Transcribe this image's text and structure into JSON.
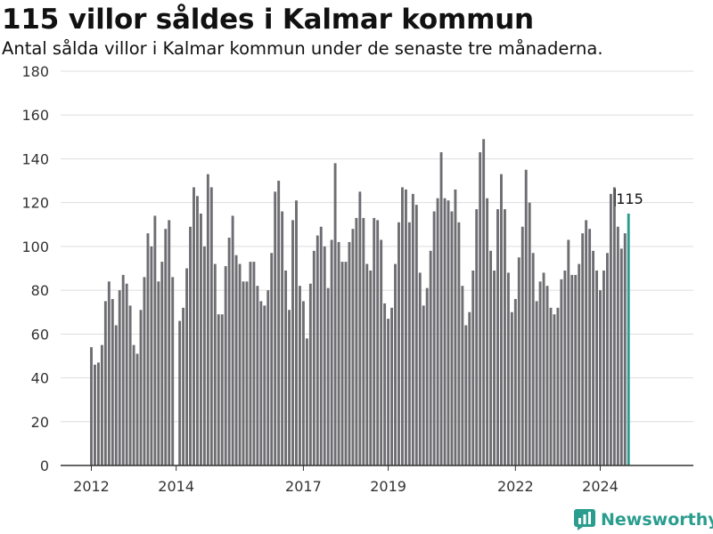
{
  "title": "115 villor såldes i Kalmar kommun",
  "subtitle": "Antal sålda villor i Kalmar kommun under de senaste tre månaderna.",
  "brand": {
    "name": "Newsworthy",
    "icon": "newsworthy-logo-icon"
  },
  "colors": {
    "bar": "#6e6d72",
    "highlight": "#2a9d8f",
    "grid": "#dddddd",
    "axis": "#333333",
    "text": "#333333"
  },
  "chart_data": {
    "type": "bar",
    "title": "115 villor såldes i Kalmar kommun",
    "subtitle": "Antal sålda villor i Kalmar kommun under de senaste tre månaderna.",
    "xlabel": "",
    "ylabel": "",
    "ylim": [
      0,
      180
    ],
    "y_ticks": [
      0,
      20,
      40,
      60,
      80,
      100,
      120,
      140,
      160,
      180
    ],
    "x_ticks": [
      "2012",
      "2014",
      "2017",
      "2019",
      "2022",
      "2024"
    ],
    "x_tick_values": [
      2012,
      2014,
      2017,
      2019,
      2022,
      2024
    ],
    "grid": true,
    "start_year": 2012,
    "periods_per_year": 12,
    "values": [
      54,
      46,
      47,
      55,
      75,
      84,
      76,
      64,
      80,
      87,
      83,
      73,
      55,
      51,
      71,
      86,
      106,
      100,
      114,
      84,
      93,
      108,
      112,
      86,
      null,
      66,
      72,
      90,
      109,
      127,
      123,
      115,
      100,
      133,
      127,
      92,
      69,
      69,
      91,
      104,
      114,
      96,
      92,
      84,
      84,
      93,
      93,
      82,
      75,
      73,
      80,
      97,
      125,
      130,
      116,
      89,
      71,
      112,
      121,
      82,
      75,
      58,
      83,
      98,
      105,
      109,
      100,
      81,
      103,
      138,
      102,
      93,
      93,
      102,
      108,
      113,
      125,
      113,
      92,
      89,
      113,
      112,
      103,
      74,
      67,
      72,
      92,
      111,
      127,
      126,
      111,
      124,
      119,
      88,
      73,
      81,
      98,
      116,
      122,
      143,
      122,
      121,
      116,
      126,
      111,
      82,
      64,
      70,
      89,
      117,
      143,
      149,
      122,
      98,
      89,
      117,
      133,
      117,
      88,
      70,
      76,
      95,
      109,
      135,
      120,
      97,
      75,
      84,
      88,
      82,
      72,
      69,
      72,
      85,
      89,
      103,
      87,
      87,
      92,
      106,
      112,
      108,
      98,
      89,
      80,
      89,
      97,
      124,
      127,
      109,
      99,
      106,
      115
    ],
    "latest_value": 115,
    "latest_label": "115"
  }
}
